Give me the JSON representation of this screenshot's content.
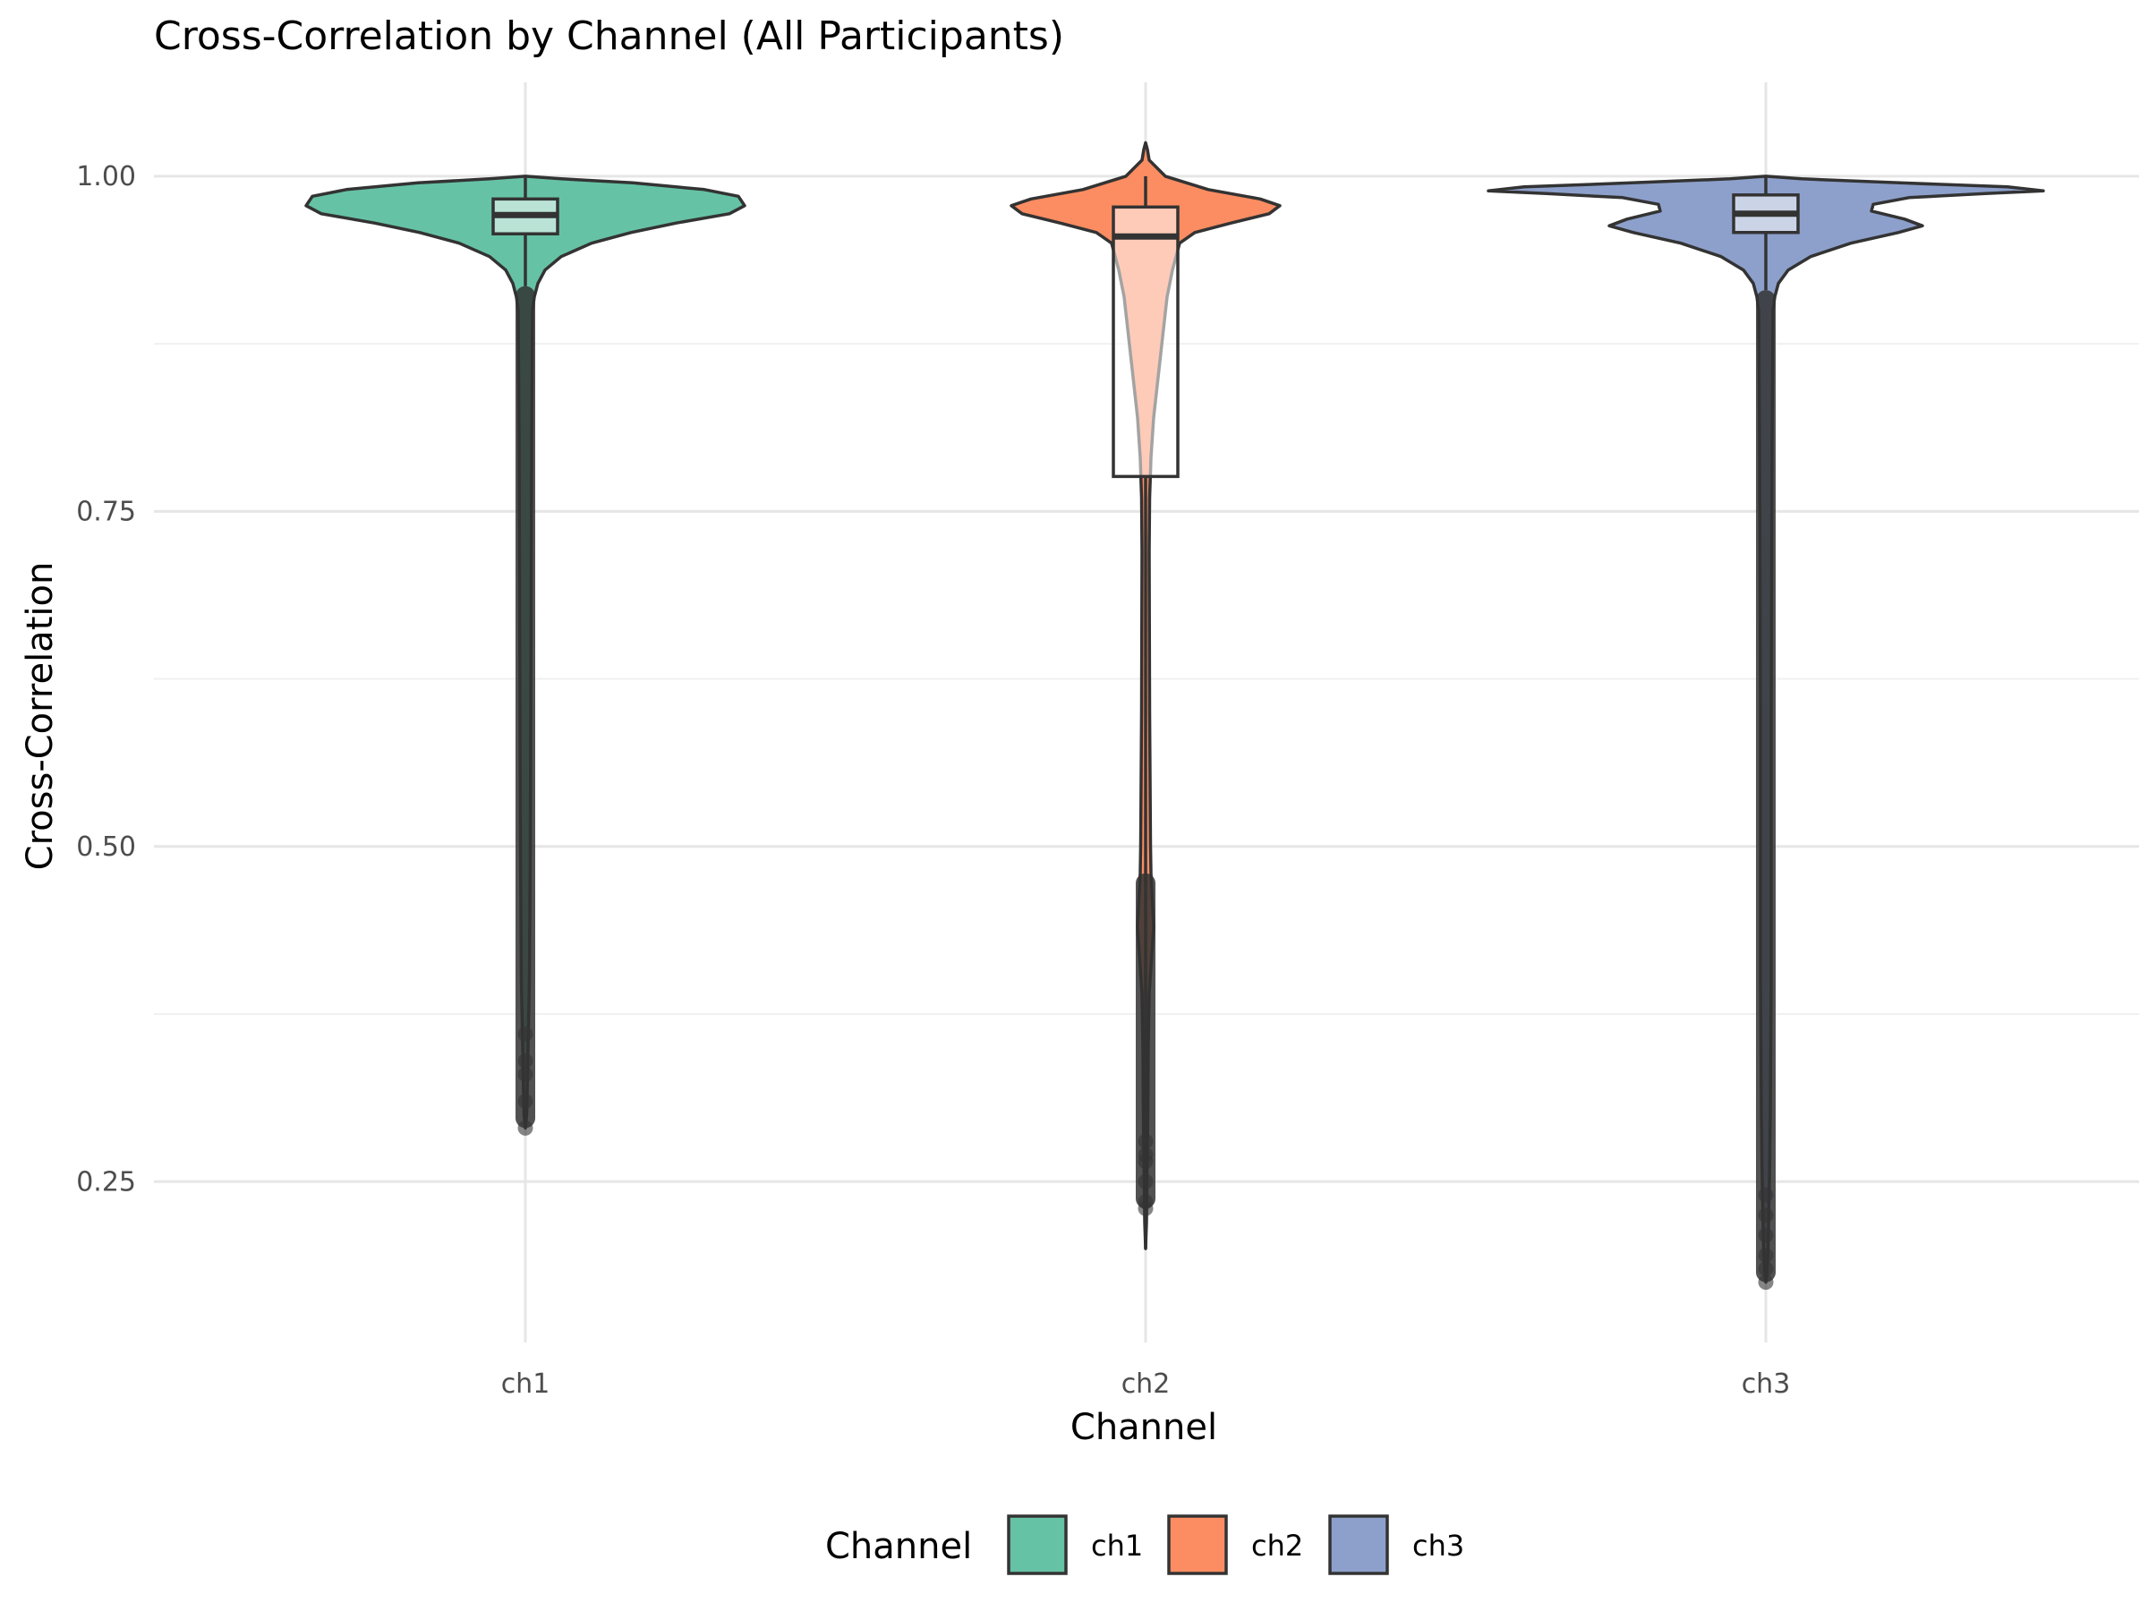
{
  "chart_data": {
    "type": "violin",
    "title": "Cross-Correlation by Channel (All Participants)",
    "xlabel": "Channel",
    "ylabel": "Cross-Correlation",
    "categories": [
      "ch1",
      "ch2",
      "ch3"
    ],
    "ylim": [
      0.13,
      1.07
    ],
    "yticks": [
      0.25,
      0.5,
      0.75,
      1.0
    ],
    "ytick_labels": [
      "0.25",
      "0.50",
      "0.75",
      "1.00"
    ],
    "grid": true,
    "legend": {
      "title": "Channel",
      "position": "bottom",
      "entries": [
        {
          "label": "ch1",
          "color": "#66c2a5"
        },
        {
          "label": "ch2",
          "color": "#fc8d62"
        },
        {
          "label": "ch3",
          "color": "#8da0cb"
        }
      ]
    },
    "series": [
      {
        "category": "ch1",
        "color": "#66c2a5",
        "box": {
          "q1": 0.957,
          "median": 0.971,
          "q3": 0.983,
          "whisker_low": 0.918,
          "whisker_high": 1.0
        },
        "outlier_range": [
          0.29,
          0.918
        ],
        "sparse_outliers": [
          0.29,
          0.31,
          0.33,
          0.34,
          0.36
        ],
        "violin_range": [
          0.29,
          1.0
        ]
      },
      {
        "category": "ch2",
        "color": "#fc8d62",
        "box": {
          "q1": 0.776,
          "median": 0.955,
          "q3": 0.977,
          "whisker_low": 0.2,
          "whisker_high": 1.0
        },
        "outlier_range": [
          0.23,
          0.48
        ],
        "sparse_outliers": [
          0.23,
          0.235,
          0.25,
          0.265,
          0.27,
          0.28
        ],
        "violin_range": [
          0.2,
          1.025
        ]
      },
      {
        "category": "ch3",
        "color": "#8da0cb",
        "box": {
          "q1": 0.958,
          "median": 0.972,
          "q3": 0.986,
          "whisker_low": 0.915,
          "whisker_high": 1.0
        },
        "outlier_range": [
          0.175,
          0.915
        ],
        "sparse_outliers": [
          0.175,
          0.185,
          0.195,
          0.21,
          0.225,
          0.24
        ],
        "violin_range": [
          0.175,
          1.0
        ]
      }
    ]
  }
}
